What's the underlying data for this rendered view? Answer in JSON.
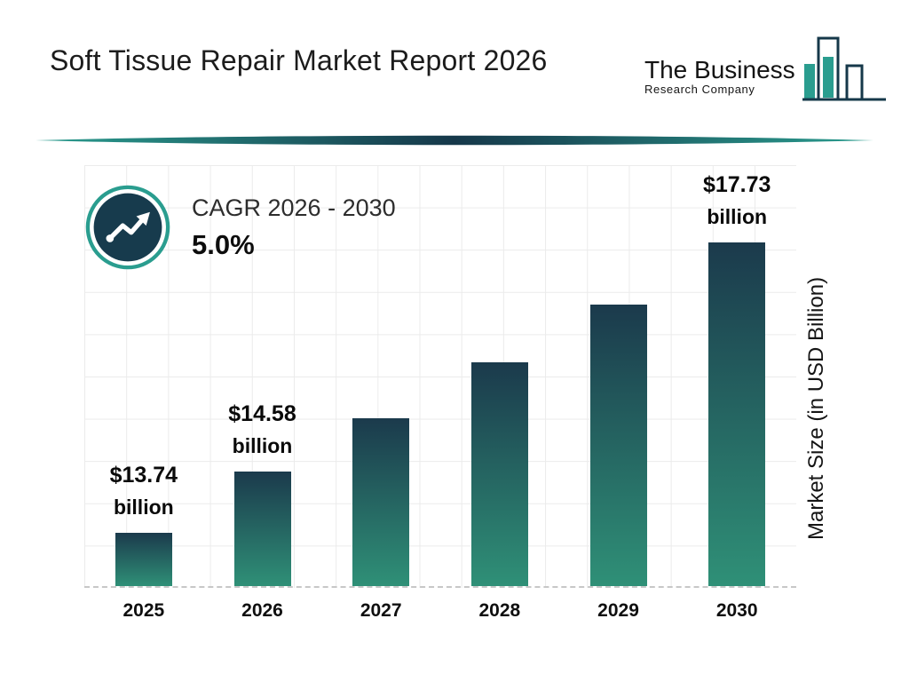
{
  "header": {
    "title": "Soft Tissue Repair Market Report 2026",
    "logo": {
      "line1": "The Business",
      "line2": "Research Company"
    }
  },
  "cagr": {
    "label": "CAGR 2026 - 2030",
    "value": "5.0%"
  },
  "chart_data": {
    "type": "bar",
    "title": "Soft Tissue Repair Market Report 2026",
    "categories": [
      "2025",
      "2026",
      "2027",
      "2028",
      "2029",
      "2030"
    ],
    "values": [
      13.74,
      14.58,
      15.31,
      16.08,
      16.88,
      17.73
    ],
    "value_labels": [
      {
        "index": 0,
        "line1": "$13.74",
        "line2": "billion"
      },
      {
        "index": 1,
        "line1": "$14.58",
        "line2": "billion"
      },
      {
        "index": 5,
        "line1": "$17.73",
        "line2": "billion"
      }
    ],
    "xlabel": "",
    "ylabel": "Market Size (in USD Billion)",
    "axis": {
      "baseline_value": 13.0,
      "top_value": 18.8
    },
    "grid": true,
    "legend": "none",
    "bar_gradient": [
      "#1b3a4c",
      "#2f9077"
    ]
  },
  "colors": {
    "accent_teal": "#2a9d8f",
    "navy": "#173b4d",
    "grid": "#ebebeb",
    "text": "#1c1c1c"
  }
}
